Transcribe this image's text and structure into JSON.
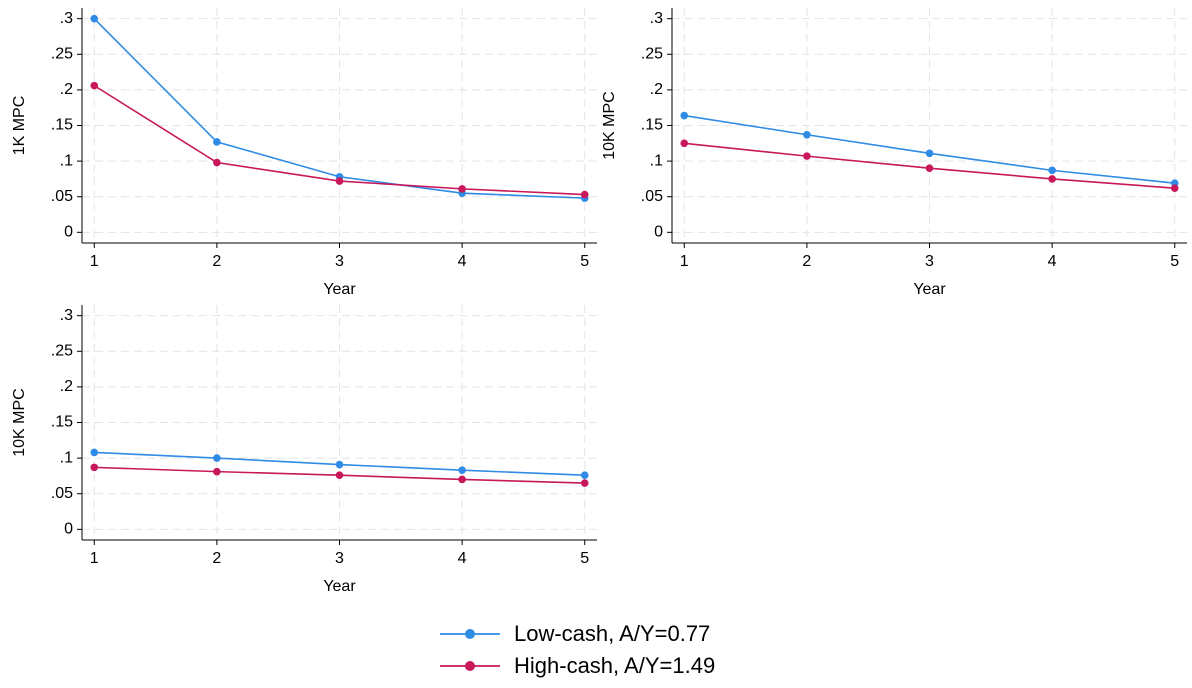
{
  "chart_data": [
    {
      "type": "line",
      "y_label": "1K MPC",
      "x_label": "Year",
      "x": [
        1,
        2,
        3,
        4,
        5
      ],
      "series": [
        {
          "name": "Low-cash, A/Y=0.77",
          "color": "#2e8be6",
          "values": [
            0.3,
            0.127,
            0.078,
            0.055,
            0.048
          ]
        },
        {
          "name": "High-cash, A/Y=1.49",
          "color": "#c8175a",
          "values": [
            0.206,
            0.098,
            0.072,
            0.061,
            0.053
          ]
        }
      ],
      "xlim": [
        0.9,
        5.1
      ],
      "xticks": [
        1,
        2,
        3,
        4,
        5
      ],
      "ylim": [
        -0.015,
        0.315
      ],
      "yticks": [
        0,
        {
          "value": 0.05,
          "label": ".05"
        },
        {
          "value": 0.1,
          "label": ".1"
        },
        {
          "value": 0.15,
          "label": ".15"
        },
        {
          "value": 0.2,
          "label": ".2"
        },
        {
          "value": 0.25,
          "label": ".25"
        },
        {
          "value": 0.3,
          "label": ".3"
        }
      ],
      "grid": true
    },
    {
      "type": "line",
      "y_label": "10K MPC",
      "x_label": "Year",
      "x": [
        1,
        2,
        3,
        4,
        5
      ],
      "series": [
        {
          "color": "#2e8be6",
          "values": [
            0.164,
            0.137,
            0.111,
            0.087,
            0.069
          ]
        },
        {
          "color": "#c8175a",
          "values": [
            0.125,
            0.107,
            0.09,
            0.075,
            0.062
          ]
        }
      ],
      "xlim": [
        0.9,
        5.1
      ],
      "xticks": [
        1,
        2,
        3,
        4,
        5
      ],
      "ylim": [
        -0.015,
        0.315
      ],
      "yticks": [
        0,
        {
          "value": 0.05,
          "label": ".05"
        },
        {
          "value": 0.1,
          "label": ".1"
        },
        {
          "value": 0.15,
          "label": ".15"
        },
        {
          "value": 0.2,
          "label": ".2"
        },
        {
          "value": 0.25,
          "label": ".25"
        },
        {
          "value": 0.3,
          "label": ".3"
        }
      ],
      "grid": true
    },
    {
      "type": "line",
      "y_label": "10K MPC",
      "x_label": "Year",
      "x": [
        1,
        2,
        3,
        4,
        5
      ],
      "series": [
        {
          "color": "#2e8be6",
          "values": [
            0.108,
            0.1,
            0.091,
            0.083,
            0.076
          ]
        },
        {
          "color": "#c8175a",
          "values": [
            0.087,
            0.081,
            0.076,
            0.07,
            0.065
          ]
        }
      ],
      "xlim": [
        0.9,
        5.1
      ],
      "xticks": [
        1,
        2,
        3,
        4,
        5
      ],
      "ylim": [
        -0.015,
        0.315
      ],
      "yticks": [
        0,
        {
          "value": 0.05,
          "label": ".05"
        },
        {
          "value": 0.1,
          "label": ".1"
        },
        {
          "value": 0.15,
          "label": ".15"
        },
        {
          "value": 0.2,
          "label": ".2"
        },
        {
          "value": 0.25,
          "label": ".25"
        },
        {
          "value": 0.3,
          "label": ".3"
        }
      ],
      "grid": true
    }
  ]
}
